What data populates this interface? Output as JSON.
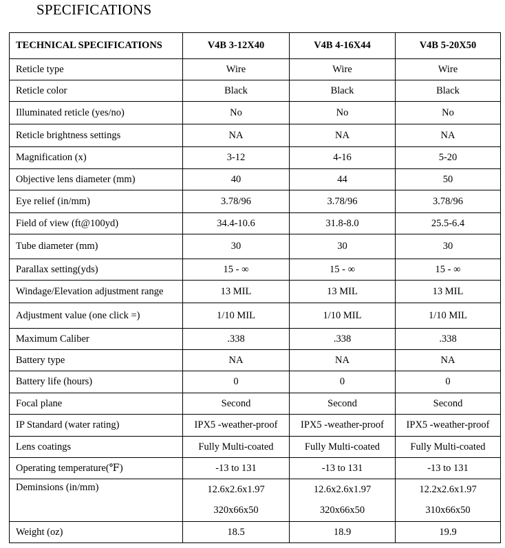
{
  "title": "SPECIFICATIONS",
  "header": [
    "TECHNICAL SPECIFICATIONS",
    "V4B 3-12X40",
    "V4B 4-16X44",
    "V4B 5-20X50"
  ],
  "rows": [
    {
      "label": "Reticle type",
      "values": [
        "Wire",
        "Wire",
        "Wire"
      ]
    },
    {
      "label": "Reticle color",
      "values": [
        "Black",
        "Black",
        "Black"
      ]
    },
    {
      "label": "Illuminated reticle (yes/no)",
      "values": [
        "No",
        "No",
        "No"
      ]
    },
    {
      "label": "Reticle brightness settings",
      "values": [
        "NA",
        "NA",
        "NA"
      ]
    },
    {
      "label": "Magnification (x)",
      "values": [
        "3-12",
        "4-16",
        "5-20"
      ]
    },
    {
      "label": "Objective lens diameter (mm)",
      "values": [
        "40",
        "44",
        "50"
      ]
    },
    {
      "label": "Eye relief (in/mm)",
      "values": [
        "3.78/96",
        "3.78/96",
        "3.78/96"
      ]
    },
    {
      "label": "Field of view (ft@100yd)",
      "values": [
        "34.4-10.6",
        "31.8-8.0",
        "25.5-6.4"
      ]
    },
    {
      "label": "Tube diameter (mm)",
      "values": [
        "30",
        "30",
        "30"
      ]
    },
    {
      "label": "Parallax setting(yds)",
      "values": [
        "15 - ∞",
        "15 - ∞",
        "15 - ∞"
      ]
    },
    {
      "label": "Windage/Elevation adjustment range",
      "values": [
        "13 MIL",
        "13 MIL",
        "13 MIL"
      ]
    },
    {
      "label": "Adjustment value (one click =)",
      "values": [
        "1/10 MIL",
        "1/10 MIL",
        "1/10 MIL"
      ]
    },
    {
      "label": "Maximum Caliber",
      "values": [
        ".338",
        ".338",
        ".338"
      ]
    },
    {
      "label": "Battery type",
      "values": [
        "NA",
        "NA",
        "NA"
      ]
    },
    {
      "label": "Battery life (hours)",
      "values": [
        "0",
        "0",
        "0"
      ]
    },
    {
      "label": "Focal plane",
      "values": [
        "Second",
        "Second",
        "Second"
      ]
    },
    {
      "label": "IP Standard (water rating)",
      "values": [
        "IPX5 -weather-proof",
        "IPX5 -weather-proof",
        "IPX5 -weather-proof"
      ]
    },
    {
      "label": "Lens coatings",
      "values": [
        "Fully Multi-coated",
        "Fully Multi-coated",
        "Fully Multi-coated"
      ]
    },
    {
      "label": "Operating temperature(℉)",
      "values": [
        "-13 to 131",
        "-13 to 131",
        "-13 to 131"
      ]
    },
    {
      "label": "Deminsions (in/mm)",
      "values": [
        [
          "12.6x2.6x1.97",
          "320x66x50"
        ],
        [
          "12.6x2.6x1.97",
          "320x66x50"
        ],
        [
          "12.2x2.6x1.97",
          "310x66x50"
        ]
      ]
    },
    {
      "label": "Weight (oz)",
      "values": [
        "18.5",
        "18.9",
        "19.9"
      ]
    }
  ]
}
